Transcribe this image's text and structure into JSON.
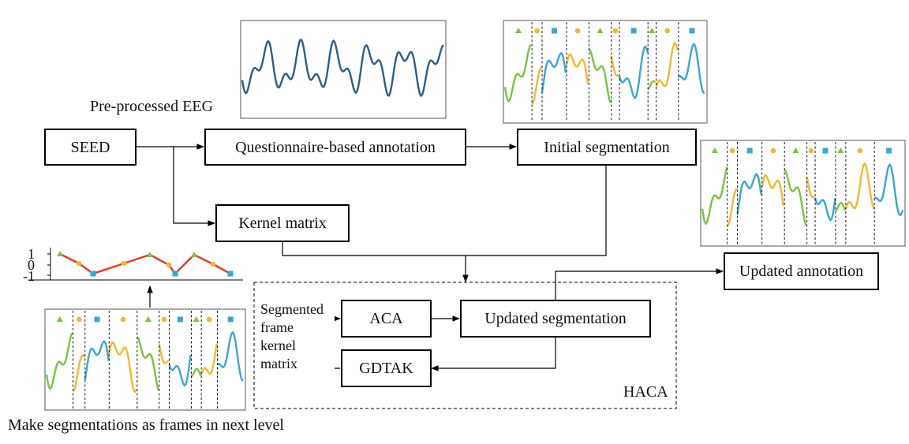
{
  "labels": {
    "preprocessed": "Pre-processed EEG",
    "seed": "SEED",
    "questionnaire": "Questionnaire-based annotation",
    "initial_seg": "Initial segmentation",
    "kernel": "Kernel matrix",
    "updated_annotation": "Updated annotation",
    "aca": "ACA",
    "updated_seg": "Updated segmentation",
    "gdtak": "GDTAK",
    "haca": "HACA",
    "segmented": "Segmented",
    "frame": "frame",
    "kernel_word": "kernel",
    "matrix": "matrix",
    "make_frames": "Make segmentations as frames in next level"
  },
  "mini_axis": {
    "y_ticks": [
      "1",
      "0",
      "-1"
    ]
  },
  "colors": {
    "eeg": "#2e5d86",
    "class_triangle": "#7cc242",
    "class_circle": "#f2b930",
    "class_square": "#3aa6d4",
    "level_line": "#e23b2e"
  }
}
